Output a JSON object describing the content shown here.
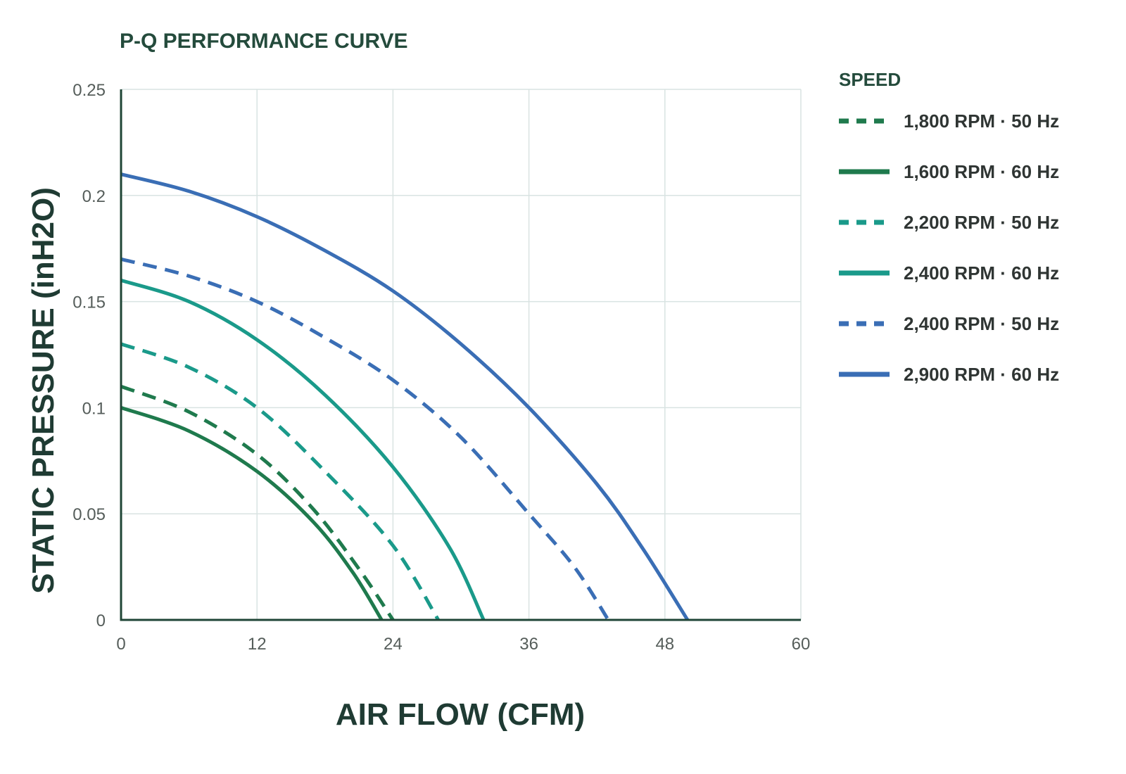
{
  "chart_data": {
    "type": "line",
    "title": "P-Q PERFORMANCE CURVE",
    "xlabel": "AIR FLOW (CFM)",
    "ylabel": "STATIC PRESSURE (inH2O)",
    "xlim": [
      0,
      60
    ],
    "ylim": [
      0,
      0.25
    ],
    "x_ticks": [
      0,
      12,
      24,
      36,
      48,
      60
    ],
    "y_ticks": [
      0,
      0.05,
      0.1,
      0.15,
      0.2,
      0.25
    ],
    "y_tick_labels": [
      "0",
      "0.05",
      "0.1",
      "0.15",
      "0.2",
      "0.25"
    ],
    "grid": true,
    "legend": {
      "title": "SPEED",
      "position": "right"
    },
    "series": [
      {
        "name": "1,800 RPM · 50 Hz",
        "style": "dashed",
        "color": "#1f7a4d",
        "points": [
          [
            0,
            0.11
          ],
          [
            6,
            0.098
          ],
          [
            12,
            0.078
          ],
          [
            17,
            0.052
          ],
          [
            21,
            0.024
          ],
          [
            24,
            0.0
          ]
        ]
      },
      {
        "name": "1,600 RPM · 60 Hz",
        "style": "solid",
        "color": "#1f7a4d",
        "points": [
          [
            0,
            0.1
          ],
          [
            6,
            0.089
          ],
          [
            12,
            0.07
          ],
          [
            17,
            0.046
          ],
          [
            20.5,
            0.022
          ],
          [
            23,
            0.0
          ]
        ]
      },
      {
        "name": "2,200 RPM · 50 Hz",
        "style": "dashed",
        "color": "#1a9a8a",
        "points": [
          [
            0,
            0.13
          ],
          [
            6,
            0.119
          ],
          [
            12,
            0.1
          ],
          [
            18,
            0.07
          ],
          [
            24,
            0.035
          ],
          [
            28,
            0.0
          ]
        ]
      },
      {
        "name": "2,400 RPM · 60 Hz",
        "style": "solid",
        "color": "#1a9a8a",
        "points": [
          [
            0,
            0.16
          ],
          [
            6,
            0.15
          ],
          [
            12,
            0.132
          ],
          [
            18,
            0.106
          ],
          [
            24,
            0.072
          ],
          [
            29,
            0.034
          ],
          [
            32,
            0.0
          ]
        ]
      },
      {
        "name": "2,400 RPM · 50 Hz",
        "style": "dashed",
        "color": "#3a6eb5",
        "points": [
          [
            0,
            0.17
          ],
          [
            6,
            0.162
          ],
          [
            12,
            0.15
          ],
          [
            18,
            0.133
          ],
          [
            24,
            0.113
          ],
          [
            30,
            0.086
          ],
          [
            36,
            0.05
          ],
          [
            40,
            0.025
          ],
          [
            43,
            0.0
          ]
        ]
      },
      {
        "name": "2,900 RPM · 60 Hz",
        "style": "solid",
        "color": "#3a6eb5",
        "points": [
          [
            0,
            0.21
          ],
          [
            6,
            0.202
          ],
          [
            12,
            0.19
          ],
          [
            18,
            0.174
          ],
          [
            24,
            0.155
          ],
          [
            30,
            0.13
          ],
          [
            36,
            0.1
          ],
          [
            42,
            0.064
          ],
          [
            46,
            0.034
          ],
          [
            50,
            0.0
          ]
        ]
      }
    ]
  }
}
